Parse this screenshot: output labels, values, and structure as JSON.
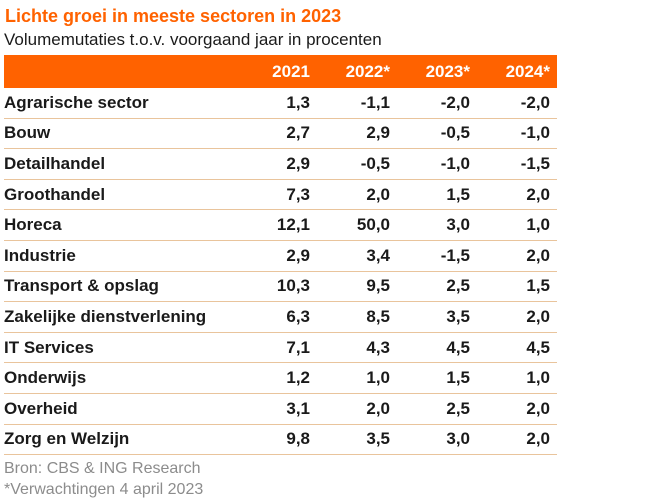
{
  "title": "Lichte groei in meeste sectoren in 2023",
  "subtitle": "Volumemutaties t.o.v. voorgaand jaar in procenten",
  "colors": {
    "accent_orange": "#FF6200",
    "header_background": "#FF6200",
    "header_text": "#FFFFFF",
    "row_divider": "#E9C49C",
    "body_text": "#1A1A1A",
    "footnote_text": "#8C8C8C"
  },
  "chart_data": {
    "type": "table",
    "title": "Lichte groei in meeste sectoren in 2023",
    "subtitle": "Volumemutaties t.o.v. voorgaand jaar in procenten",
    "columns": [
      "2021",
      "2022*",
      "2023*",
      "2024*"
    ],
    "rows": [
      {
        "label": "Agrarische sector",
        "values": [
          "1,3",
          "-1,1",
          "-2,0",
          "-2,0"
        ]
      },
      {
        "label": "Bouw",
        "values": [
          "2,7",
          "2,9",
          "-0,5",
          "-1,0"
        ]
      },
      {
        "label": "Detailhandel",
        "values": [
          "2,9",
          "-0,5",
          "-1,0",
          "-1,5"
        ]
      },
      {
        "label": "Groothandel",
        "values": [
          "7,3",
          "2,0",
          "1,5",
          "2,0"
        ]
      },
      {
        "label": "Horeca",
        "values": [
          "12,1",
          "50,0",
          "3,0",
          "1,0"
        ]
      },
      {
        "label": "Industrie",
        "values": [
          "2,9",
          "3,4",
          "-1,5",
          "2,0"
        ]
      },
      {
        "label": "Transport & opslag",
        "values": [
          "10,3",
          "9,5",
          "2,5",
          "1,5"
        ]
      },
      {
        "label": "Zakelijke dienstverlening",
        "values": [
          "6,3",
          "8,5",
          "3,5",
          "2,0"
        ]
      },
      {
        "label": "IT Services",
        "values": [
          "7,1",
          "4,3",
          "4,5",
          "4,5"
        ]
      },
      {
        "label": "Onderwijs",
        "values": [
          "1,2",
          "1,0",
          "1,5",
          "1,0"
        ]
      },
      {
        "label": "Overheid",
        "values": [
          "3,1",
          "2,0",
          "2,5",
          "2,0"
        ]
      },
      {
        "label": "Zorg en Welzijn",
        "values": [
          "9,8",
          "3,5",
          "3,0",
          "2,0"
        ]
      }
    ]
  },
  "footer": {
    "source": "Bron: CBS & ING Research",
    "note": "*Verwachtingen 4 april 2023"
  }
}
